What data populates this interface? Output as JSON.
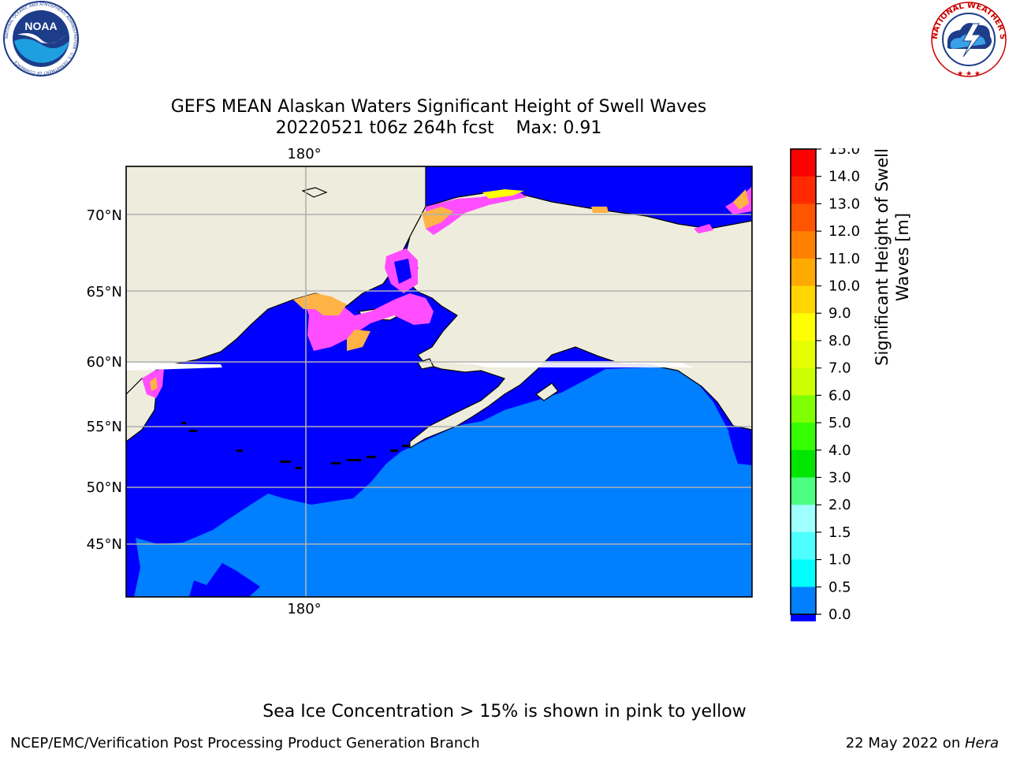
{
  "header": {
    "title_line1": "GEFS MEAN Alaskan Waters Significant Height of Swell Waves",
    "title_line2": "20220521 t06z 264h fcst    Max: 0.91"
  },
  "map": {
    "lon_label_top": "180°",
    "lon_label_bottom": "180°",
    "lat_labels": [
      "70°N",
      "65°N",
      "60°N",
      "55°N",
      "50°N",
      "45°N"
    ],
    "colors": {
      "land": "#eeecdc",
      "swell_0_05": "#0000ff",
      "swell_05_10": "#007fff",
      "ice_pink": "#ff4dff",
      "ice_orange": "#ffb347",
      "ice_yellow": "#ffff00",
      "grid": "#b0b0b0"
    }
  },
  "colorbar": {
    "label_line1": "Significant Height of Swell",
    "label_line2": "Waves [m]",
    "ticks": [
      "15.0",
      "14.0",
      "13.0",
      "12.0",
      "11.0",
      "10.0",
      "9.0",
      "8.0",
      "7.0",
      "6.0",
      "5.0",
      "4.0",
      "3.0",
      "2.0",
      "1.5",
      "1.0",
      "0.5",
      "0.0"
    ],
    "colors_top_to_bottom": [
      "#ff0000",
      "#ff2a00",
      "#ff5500",
      "#ff8000",
      "#ffaa00",
      "#ffd500",
      "#ffff00",
      "#e6ff00",
      "#ccff00",
      "#80ff00",
      "#33ff00",
      "#00e600",
      "#4dff80",
      "#a0ffff",
      "#4dffff",
      "#00ffff",
      "#0080ff",
      "#0000ff"
    ]
  },
  "logos": {
    "noaa_text": "NOAA",
    "noaa_ring_text": "NATIONAL OCEANIC AND ATMOSPHERIC ADMINISTRATION · U.S. DEPARTMENT OF COMMERCE",
    "nws_ring_text": "NATIONAL WEATHER SERVICE"
  },
  "footer": {
    "footnote": "Sea Ice Concentration > 15% is shown in pink to yellow",
    "credit_left": "NCEP/EMC/Verification Post Processing Product Generation Branch",
    "credit_right_date": "22 May 2022 on ",
    "credit_right_host": "Hera"
  }
}
